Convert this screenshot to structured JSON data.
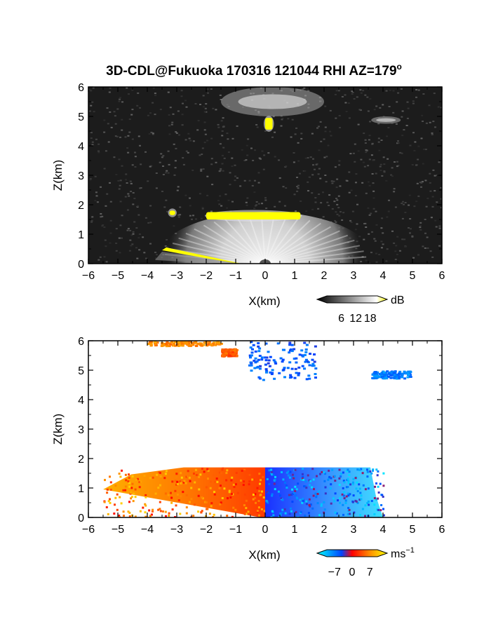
{
  "figure": {
    "title_main": "3D-CDL@Fukuoka 170316 121044 RHI AZ=179",
    "title_sup": "o"
  },
  "chart_data": [
    {
      "type": "heatmap",
      "variable": "SNR",
      "xlabel": "X(km)",
      "ylabel": "Z(km)",
      "xlim": [
        -6,
        6
      ],
      "ylim": [
        0,
        6
      ],
      "xticks": [
        "-6",
        "-5",
        "-4",
        "-3",
        "-2",
        "-1",
        "0",
        "1",
        "2",
        "3",
        "4",
        "5",
        "6"
      ],
      "yticks": [
        "0",
        "1",
        "2",
        "3",
        "4",
        "5",
        "6"
      ],
      "background": "#1c1c1c",
      "colorbar": {
        "unit": "dB",
        "ticks": [
          "6",
          "12",
          "18"
        ],
        "tick_values": [
          6,
          12,
          18
        ],
        "range": [
          0,
          21
        ],
        "colors": [
          "#000000",
          "#ffffff",
          "#ffff00"
        ]
      },
      "features": [
        {
          "kind": "fan",
          "x_center": 0,
          "z_base": 0,
          "radius_km": 3.3,
          "z_top": 1.6,
          "level": "bright"
        },
        {
          "kind": "cloud",
          "x": [
            -2.0,
            1.2
          ],
          "z": [
            1.5,
            1.75
          ],
          "level": "saturated"
        },
        {
          "kind": "cloud",
          "x": [
            -3.25,
            -3.05
          ],
          "z": [
            1.65,
            1.8
          ],
          "level": "saturated"
        },
        {
          "kind": "cloud",
          "x": [
            0.0,
            0.25
          ],
          "z": [
            4.55,
            4.95
          ],
          "level": "saturated"
        },
        {
          "kind": "cloud",
          "x": [
            -1.5,
            2.0
          ],
          "z": [
            5.0,
            6.0
          ],
          "level": "gray"
        },
        {
          "kind": "cloud",
          "x": [
            3.6,
            4.6
          ],
          "z": [
            4.75,
            5.0
          ],
          "level": "gray"
        },
        {
          "kind": "ground",
          "x": [
            -3.5,
            -0.8
          ],
          "z": [
            0.0,
            0.55
          ],
          "level": "saturated"
        }
      ]
    },
    {
      "type": "heatmap",
      "variable": "Doppler velocity",
      "xlabel": "X(km)",
      "ylabel": "Z(km)",
      "xlim": [
        -6,
        6
      ],
      "ylim": [
        0,
        6
      ],
      "xticks": [
        "-6",
        "-5",
        "-4",
        "-3",
        "-2",
        "-1",
        "0",
        "1",
        "2",
        "3",
        "4",
        "5",
        "6"
      ],
      "yticks": [
        "0",
        "1",
        "2",
        "3",
        "4",
        "5",
        "6"
      ],
      "background": "#ffffff",
      "colorbar": {
        "unit": "ms",
        "unit_sup": "−1",
        "ticks": [
          "−7",
          "0",
          "7"
        ],
        "tick_values": [
          -7,
          0,
          7
        ],
        "range": [
          -10,
          10
        ],
        "colors": [
          "#00ffff",
          "#0000ff",
          "#ff0000",
          "#ff8c00",
          "#ffff00"
        ]
      },
      "features": [
        {
          "kind": "region",
          "x": [
            -5.5,
            0.0
          ],
          "z": [
            0.0,
            1.7
          ],
          "velocity": 4
        },
        {
          "kind": "region",
          "x": [
            0.0,
            4.0
          ],
          "z": [
            0.0,
            1.7
          ],
          "velocity": -5
        },
        {
          "kind": "cloud",
          "x": [
            -4.0,
            -1.5
          ],
          "z": [
            5.85,
            6.0
          ],
          "velocity": 5
        },
        {
          "kind": "cloud",
          "x": [
            -1.5,
            -1.0
          ],
          "z": [
            5.5,
            5.75
          ],
          "velocity": 3
        },
        {
          "kind": "cloud",
          "x": [
            -0.6,
            1.7
          ],
          "z": [
            4.65,
            6.0
          ],
          "velocity": -4
        },
        {
          "kind": "cloud",
          "x": [
            3.6,
            4.9
          ],
          "z": [
            4.75,
            5.0
          ],
          "velocity": -5
        }
      ]
    }
  ]
}
